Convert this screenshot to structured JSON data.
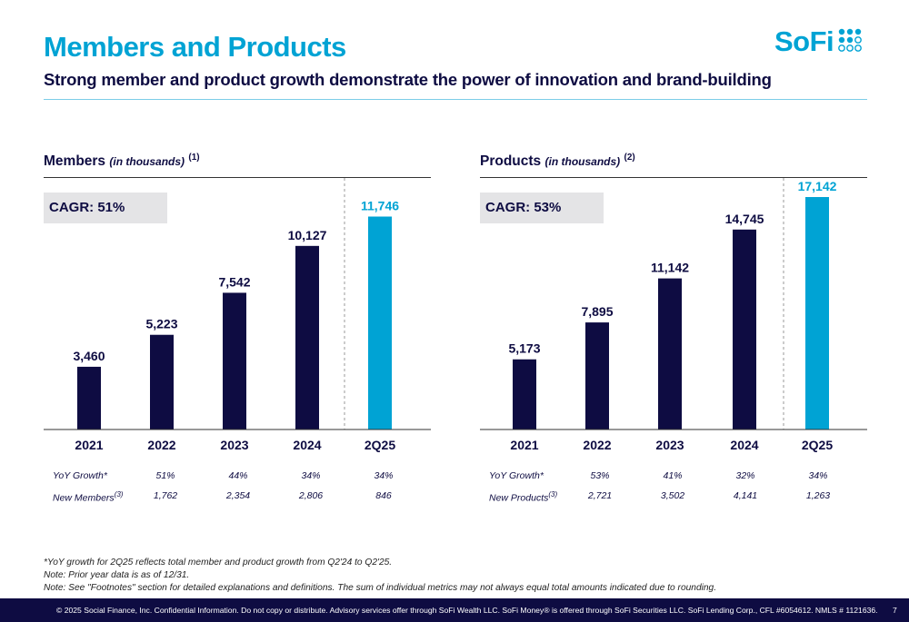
{
  "header": {
    "title": "Members and Products",
    "subtitle": "Strong member and product growth demonstrate the power of innovation and brand-building",
    "logo_text": "SoFi",
    "logo_icon": "sofi-dots-icon"
  },
  "colors": {
    "navy": "#0e0c42",
    "accent": "#00a3d4",
    "cagr_bg": "#e4e4e6"
  },
  "panels": [
    {
      "title": "Members",
      "unit": "(in thousands)",
      "footnote": "(1)",
      "cagr": "CAGR: 51%",
      "metrics": [
        {
          "label": "YoY Growth*",
          "sup": "",
          "values": [
            "51%",
            "44%",
            "34%",
            "34%"
          ]
        },
        {
          "label": "New Members",
          "sup": "(3)",
          "values": [
            "1,762",
            "2,354",
            "2,806",
            "846"
          ]
        }
      ]
    },
    {
      "title": "Products",
      "unit": "(in thousands)",
      "footnote": "(2)",
      "cagr": "CAGR: 53%",
      "metrics": [
        {
          "label": "YoY Growth*",
          "sup": "",
          "values": [
            "53%",
            "41%",
            "32%",
            "34%"
          ]
        },
        {
          "label": "New Products",
          "sup": "(3)",
          "values": [
            "2,721",
            "3,502",
            "4,141",
            "1,263"
          ]
        }
      ]
    }
  ],
  "chart_data": [
    {
      "type": "bar",
      "title": "Members (in thousands)",
      "categories": [
        "2021",
        "2022",
        "2023",
        "2024",
        "2Q25"
      ],
      "values": [
        3460,
        5223,
        7542,
        10127,
        11746
      ],
      "value_labels": [
        "3,460",
        "5,223",
        "7,542",
        "10,127",
        "11,746"
      ],
      "highlight_category": "2Q25",
      "ylim": [
        0,
        13000
      ],
      "grid": false,
      "divider_before": "2Q25"
    },
    {
      "type": "bar",
      "title": "Products (in thousands)",
      "categories": [
        "2021",
        "2022",
        "2023",
        "2024",
        "2Q25"
      ],
      "values": [
        5173,
        7895,
        11142,
        14745,
        17142
      ],
      "value_labels": [
        "5,173",
        "7,895",
        "11,142",
        "14,745",
        "17,142"
      ],
      "highlight_category": "2Q25",
      "ylim": [
        0,
        19000
      ],
      "grid": false,
      "divider_before": "2Q25"
    }
  ],
  "notes": [
    "*YoY growth for 2Q25 reflects total member and product growth from Q2'24 to Q2'25.",
    "Note: Prior year data is as of 12/31.",
    "Note: See \"Footnotes\" section for detailed explanations and definitions. The sum of individual metrics may not always equal total amounts indicated due to rounding."
  ],
  "footer": {
    "text": "© 2025 Social Finance, Inc. Confidential Information. Do not copy or distribute. Advisory services offer through SoFi Wealth LLC. SoFi Money® is offered through SoFi Securities LLC. SoFi Lending Corp., CFL #6054612. NMLS # 1121636.",
    "page_number": "7"
  }
}
